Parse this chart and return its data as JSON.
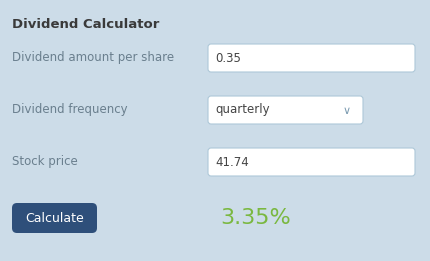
{
  "title": "Dividend Calculator",
  "bg_color": "#ccdce8",
  "field1_label": "Dividend amount per share",
  "field1_value": "0.35",
  "field2_label": "Dividend frequency",
  "field2_value": "quarterly",
  "field3_label": "Stock price",
  "field3_value": "41.74",
  "button_text": "Calculate",
  "button_bg": "#2e4f7a",
  "button_text_color": "#ffffff",
  "result_text": "3.35%",
  "result_color": "#7ab840",
  "input_bg": "#ffffff",
  "input_border": "#aec8d8",
  "label_color": "#6a7f8e",
  "title_color": "#3a3a3a",
  "title_fontsize": 9.5,
  "label_fontsize": 8.5,
  "value_fontsize": 8.5,
  "result_fontsize": 16,
  "button_fontsize": 9
}
